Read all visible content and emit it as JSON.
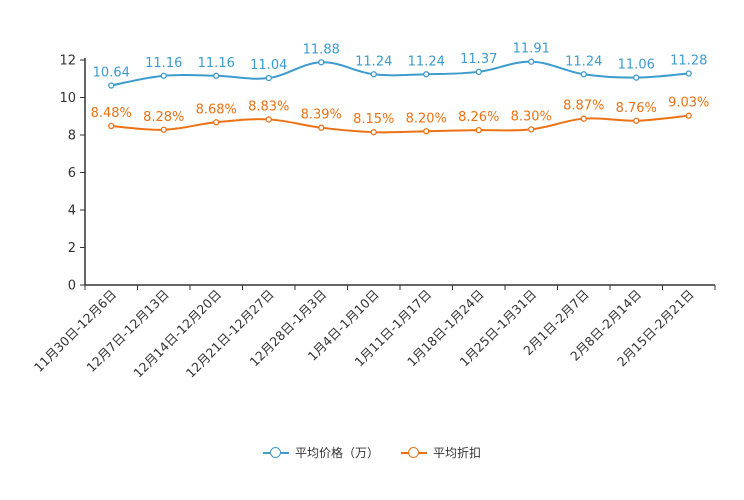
{
  "colors": {
    "price": "#3d9bcd",
    "discount": "#ec7215",
    "axis": "#333333"
  },
  "chart_data": {
    "type": "line",
    "categories": [
      "11月30日-12月6日",
      "12月7日-12月13日",
      "12月14日-12月20日",
      "12月21日-12月27日",
      "12月28日-1月3日",
      "1月4日-1月10日",
      "1月11日-1月17日",
      "1月18日-1月24日",
      "1月25日-1月31日",
      "2月1日-2月7日",
      "2月8日-2月14日",
      "2月15日-2月21日"
    ],
    "ylim": [
      0,
      12
    ],
    "yticks": [
      0,
      2,
      4,
      6,
      8,
      10,
      12
    ],
    "grid": false,
    "legend_position": "bottom-center",
    "series": [
      {
        "name": "平均价格（万）",
        "color_key": "price",
        "values": [
          10.64,
          11.16,
          11.16,
          11.04,
          11.88,
          11.24,
          11.24,
          11.37,
          11.91,
          11.24,
          11.06,
          11.28
        ],
        "labels": [
          "10.64",
          "11.16",
          "11.16",
          "11.04",
          "11.88",
          "11.24",
          "11.24",
          "11.37",
          "11.91",
          "11.24",
          "11.06",
          "11.28"
        ]
      },
      {
        "name": "平均折扣",
        "color_key": "discount",
        "values": [
          8.48,
          8.28,
          8.68,
          8.83,
          8.39,
          8.15,
          8.2,
          8.26,
          8.3,
          8.87,
          8.76,
          9.03
        ],
        "labels": [
          "8.48%",
          "8.28%",
          "8.68%",
          "8.83%",
          "8.39%",
          "8.15%",
          "8.20%",
          "8.26%",
          "8.30%",
          "8.87%",
          "8.76%",
          "9.03%"
        ]
      }
    ]
  }
}
